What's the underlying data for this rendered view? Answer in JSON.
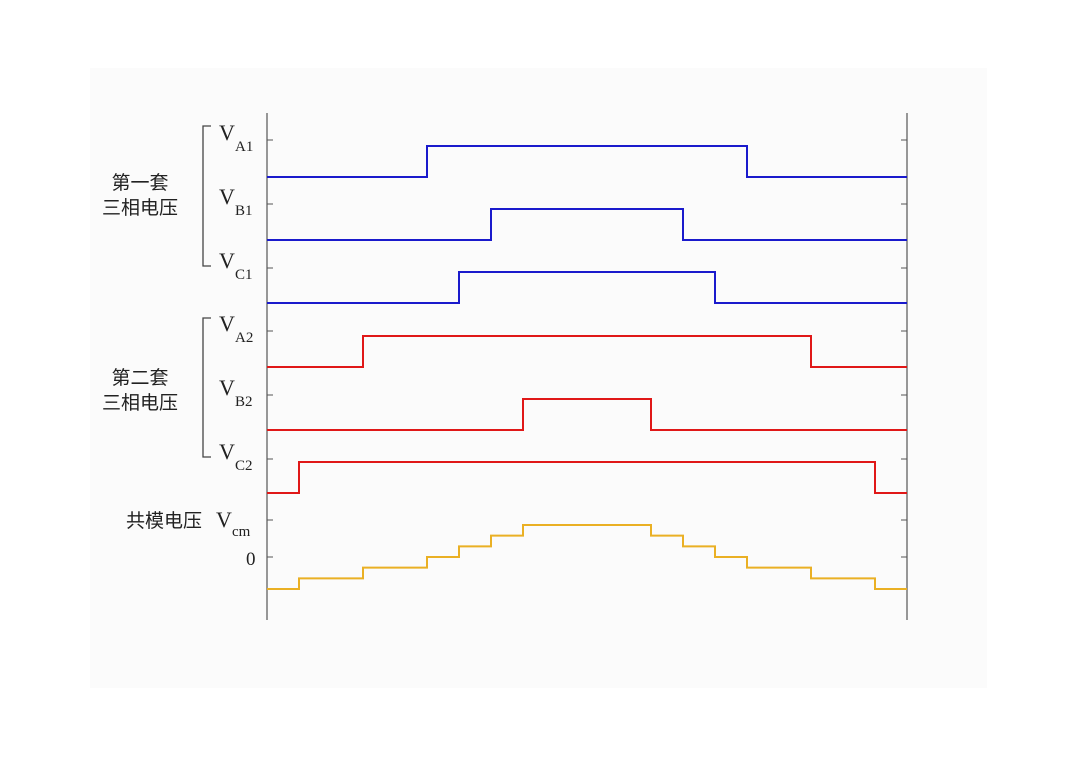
{
  "groups": [
    {
      "line1": "第一套",
      "line2": "三相电压"
    },
    {
      "line1": "第二套",
      "line2": "三相电压"
    }
  ],
  "cm_label": {
    "prefix": "共模电压",
    "symbol": "V",
    "sub": "cm"
  },
  "zero_label": "0",
  "colors": {
    "set1": "#1a1acc",
    "set2": "#e01818",
    "cm": "#eab024",
    "axis": "#555555"
  },
  "chart_data": {
    "type": "line",
    "channels": [
      {
        "name": "V",
        "sub": "A1",
        "set": 1,
        "rise": 0.25,
        "fall": 0.75
      },
      {
        "name": "V",
        "sub": "B1",
        "set": 1,
        "rise": 0.35,
        "fall": 0.65
      },
      {
        "name": "V",
        "sub": "C1",
        "set": 1,
        "rise": 0.3,
        "fall": 0.7
      },
      {
        "name": "V",
        "sub": "A2",
        "set": 2,
        "rise": 0.15,
        "fall": 0.85
      },
      {
        "name": "V",
        "sub": "B2",
        "set": 2,
        "rise": 0.4,
        "fall": 0.6
      },
      {
        "name": "V",
        "sub": "C2",
        "set": 2,
        "rise": 0.05,
        "fall": 0.95
      }
    ],
    "common_mode": {
      "transitions": [
        0.05,
        0.15,
        0.25,
        0.3,
        0.35,
        0.4,
        0.6,
        0.65,
        0.7,
        0.75,
        0.85,
        0.95
      ],
      "levels": [
        -1,
        -0.667,
        -0.333,
        0,
        0.333,
        0.667,
        1,
        0.667,
        0.333,
        0,
        -0.333,
        -0.667,
        -1
      ]
    },
    "x_range": [
      0,
      1
    ]
  }
}
